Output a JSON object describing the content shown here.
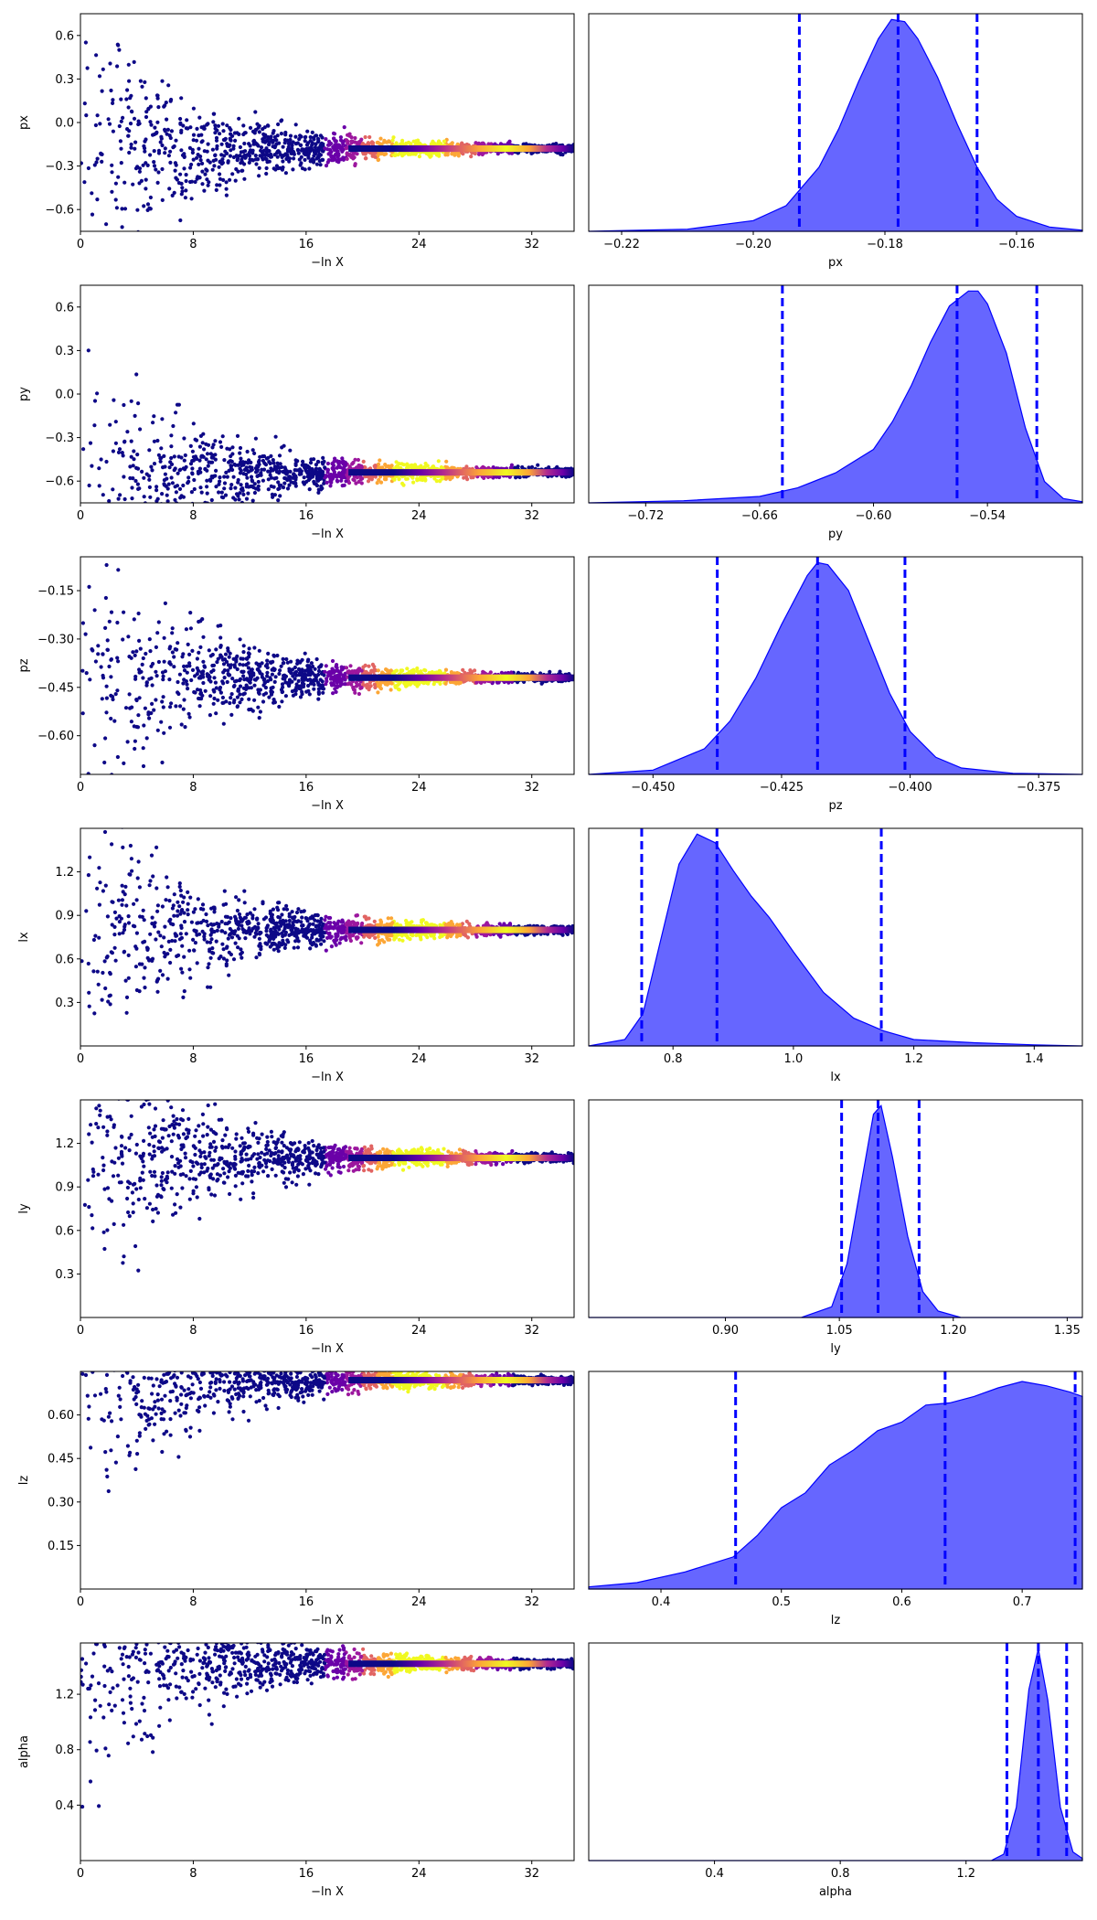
{
  "figure": {
    "xlabel_trace": "−ln X"
  },
  "colors": {
    "kde_fill": "#0000ff",
    "kde_fill_opacity": 0.6,
    "quantile_line": "#0000ff",
    "trace_base": "#0d0887",
    "trace_mid": "#9c179e",
    "trace_peak": "#f0f921"
  },
  "chart_data": [
    {
      "type": "scatter",
      "param": "px",
      "xlabel": "−ln X",
      "ylabel": "px",
      "xlim": [
        0,
        35
      ],
      "ylim": [
        -0.75,
        0.75
      ],
      "xticks": [
        0,
        8,
        16,
        24,
        32
      ],
      "yticks": [
        -0.6,
        -0.3,
        0.0,
        0.3,
        0.6
      ],
      "yticklabels": [
        "−0.6",
        "−0.3",
        "0.0",
        "0.3",
        "0.6"
      ],
      "converged_value": -0.18,
      "peak_x": 24
    },
    {
      "type": "area",
      "param": "px",
      "xlabel": "px",
      "xlim": [
        -0.225,
        -0.15
      ],
      "xticks": [
        -0.22,
        -0.2,
        -0.18,
        -0.16
      ],
      "xticklabels": [
        "−0.22",
        "−0.20",
        "−0.18",
        "−0.16"
      ],
      "quantiles": [
        -0.193,
        -0.178,
        -0.166
      ],
      "density": {
        "x": [
          -0.225,
          -0.21,
          -0.2,
          -0.195,
          -0.19,
          -0.187,
          -0.184,
          -0.181,
          -0.179,
          -0.177,
          -0.175,
          -0.172,
          -0.169,
          -0.166,
          -0.163,
          -0.16,
          -0.155,
          -0.15
        ],
        "y": [
          0,
          0.01,
          0.05,
          0.12,
          0.3,
          0.48,
          0.7,
          0.9,
          0.99,
          0.98,
          0.9,
          0.72,
          0.5,
          0.3,
          0.15,
          0.07,
          0.02,
          0.005
        ]
      }
    },
    {
      "type": "scatter",
      "param": "py",
      "xlabel": "−ln X",
      "ylabel": "py",
      "xlim": [
        0,
        35
      ],
      "ylim": [
        -0.75,
        0.75
      ],
      "xticks": [
        0,
        8,
        16,
        24,
        32
      ],
      "yticks": [
        -0.6,
        -0.3,
        0.0,
        0.3,
        0.6
      ],
      "yticklabels": [
        "−0.6",
        "−0.3",
        "0.0",
        "0.3",
        "0.6"
      ],
      "converged_value": -0.54,
      "peak_x": 24
    },
    {
      "type": "area",
      "param": "py",
      "xlabel": "py",
      "xlim": [
        -0.75,
        -0.49
      ],
      "xticks": [
        -0.72,
        -0.66,
        -0.6,
        -0.54
      ],
      "xticklabels": [
        "−0.72",
        "−0.66",
        "−0.60",
        "−0.54"
      ],
      "quantiles": [
        -0.648,
        -0.556,
        -0.514
      ],
      "density": {
        "x": [
          -0.75,
          -0.7,
          -0.66,
          -0.64,
          -0.62,
          -0.6,
          -0.59,
          -0.58,
          -0.57,
          -0.56,
          -0.55,
          -0.545,
          -0.54,
          -0.53,
          -0.52,
          -0.51,
          -0.5,
          -0.49
        ],
        "y": [
          0,
          0.01,
          0.03,
          0.07,
          0.14,
          0.25,
          0.38,
          0.55,
          0.75,
          0.92,
          0.99,
          0.99,
          0.93,
          0.7,
          0.35,
          0.1,
          0.02,
          0.005
        ]
      }
    },
    {
      "type": "scatter",
      "param": "pz",
      "xlabel": "−ln X",
      "ylabel": "pz",
      "xlim": [
        0,
        35
      ],
      "ylim": [
        -0.72,
        -0.045
      ],
      "xticks": [
        0,
        8,
        16,
        24,
        32
      ],
      "yticks": [
        -0.6,
        -0.45,
        -0.3,
        -0.15
      ],
      "yticklabels": [
        "−0.60",
        "−0.45",
        "−0.30",
        "−0.15"
      ],
      "converged_value": -0.42,
      "peak_x": 24
    },
    {
      "type": "area",
      "param": "pz",
      "xlabel": "pz",
      "xlim": [
        -0.4625,
        -0.3665
      ],
      "xticks": [
        -0.45,
        -0.425,
        -0.4,
        -0.375
      ],
      "xticklabels": [
        "−0.450",
        "−0.425",
        "−0.400",
        "−0.375"
      ],
      "quantiles": [
        -0.4375,
        -0.418,
        -0.401
      ],
      "density": {
        "x": [
          -0.4625,
          -0.45,
          -0.44,
          -0.435,
          -0.43,
          -0.425,
          -0.42,
          -0.418,
          -0.416,
          -0.412,
          -0.408,
          -0.404,
          -0.4,
          -0.395,
          -0.39,
          -0.38,
          -0.3665
        ],
        "y": [
          0,
          0.02,
          0.12,
          0.25,
          0.45,
          0.7,
          0.93,
          0.99,
          0.98,
          0.86,
          0.62,
          0.38,
          0.2,
          0.08,
          0.03,
          0.005,
          0
        ]
      }
    },
    {
      "type": "scatter",
      "param": "lx",
      "xlabel": "−ln X",
      "ylabel": "lx",
      "xlim": [
        0,
        35
      ],
      "ylim": [
        0.0,
        1.5
      ],
      "xticks": [
        0,
        8,
        16,
        24,
        32
      ],
      "yticks": [
        0.3,
        0.6,
        0.9,
        1.2
      ],
      "yticklabels": [
        "0.3",
        "0.6",
        "0.9",
        "1.2"
      ],
      "converged_value": 0.8,
      "peak_x": 24
    },
    {
      "type": "area",
      "param": "lx",
      "xlabel": "lx",
      "xlim": [
        0.66,
        1.48
      ],
      "xticks": [
        0.8,
        1.0,
        1.2,
        1.4
      ],
      "xticklabels": [
        "0.8",
        "1.0",
        "1.2",
        "1.4"
      ],
      "quantiles": [
        0.748,
        0.873,
        1.146
      ],
      "density": {
        "x": [
          0.66,
          0.72,
          0.75,
          0.78,
          0.81,
          0.84,
          0.87,
          0.9,
          0.93,
          0.96,
          1.0,
          1.05,
          1.1,
          1.15,
          1.2,
          1.3,
          1.4,
          1.48
        ],
        "y": [
          0,
          0.03,
          0.15,
          0.5,
          0.85,
          0.99,
          0.95,
          0.82,
          0.7,
          0.6,
          0.44,
          0.25,
          0.13,
          0.07,
          0.03,
          0.015,
          0.005,
          0
        ]
      }
    },
    {
      "type": "scatter",
      "param": "ly",
      "xlabel": "−ln X",
      "ylabel": "ly",
      "xlim": [
        0,
        35
      ],
      "ylim": [
        0.0,
        1.5
      ],
      "xticks": [
        0,
        8,
        16,
        24,
        32
      ],
      "yticks": [
        0.3,
        0.6,
        0.9,
        1.2
      ],
      "yticklabels": [
        "0.3",
        "0.6",
        "0.9",
        "1.2"
      ],
      "converged_value": 1.1,
      "peak_x": 24
    },
    {
      "type": "area",
      "param": "ly",
      "xlabel": "ly",
      "xlim": [
        0.72,
        1.37
      ],
      "xticks": [
        0.9,
        1.05,
        1.2,
        1.35
      ],
      "xticklabels": [
        "0.90",
        "1.05",
        "1.20",
        "1.35"
      ],
      "quantiles": [
        1.053,
        1.101,
        1.155
      ],
      "density": {
        "x": [
          0.72,
          1.0,
          1.04,
          1.06,
          1.08,
          1.095,
          1.105,
          1.12,
          1.14,
          1.16,
          1.18,
          1.21,
          1.37
        ],
        "y": [
          0,
          0,
          0.05,
          0.25,
          0.65,
          0.95,
          0.99,
          0.75,
          0.38,
          0.12,
          0.03,
          0,
          0
        ]
      }
    },
    {
      "type": "scatter",
      "param": "lz",
      "xlabel": "−ln X",
      "ylabel": "lz",
      "xlim": [
        0,
        35
      ],
      "ylim": [
        0.0,
        0.75
      ],
      "xticks": [
        0,
        8,
        16,
        24,
        32
      ],
      "yticks": [
        0.15,
        0.3,
        0.45,
        0.6
      ],
      "yticklabels": [
        "0.15",
        "0.30",
        "0.45",
        "0.60"
      ],
      "converged_value": 0.72,
      "peak_x": 24
    },
    {
      "type": "area",
      "param": "lz",
      "xlabel": "lz",
      "xlim": [
        0.34,
        0.75
      ],
      "xticks": [
        0.4,
        0.5,
        0.6,
        0.7
      ],
      "xticklabels": [
        "0.4",
        "0.5",
        "0.6",
        "0.7"
      ],
      "quantiles": [
        0.462,
        0.636,
        0.744
      ],
      "density": {
        "x": [
          0.34,
          0.38,
          0.42,
          0.46,
          0.48,
          0.5,
          0.52,
          0.54,
          0.56,
          0.58,
          0.6,
          0.62,
          0.64,
          0.66,
          0.68,
          0.7,
          0.72,
          0.74,
          0.75
        ],
        "y": [
          0.01,
          0.03,
          0.08,
          0.15,
          0.25,
          0.38,
          0.45,
          0.58,
          0.65,
          0.74,
          0.78,
          0.86,
          0.87,
          0.9,
          0.94,
          0.97,
          0.95,
          0.92,
          0.9
        ]
      }
    },
    {
      "type": "scatter",
      "param": "alpha",
      "xlabel": "−ln X",
      "ylabel": "alpha",
      "xlim": [
        0,
        35
      ],
      "ylim": [
        0.0,
        1.57
      ],
      "xticks": [
        0,
        8,
        16,
        24,
        32
      ],
      "yticks": [
        0.4,
        0.8,
        1.2
      ],
      "yticklabels": [
        "0.4",
        "0.8",
        "1.2"
      ],
      "converged_value": 1.42,
      "peak_x": 24
    },
    {
      "type": "area",
      "param": "alpha",
      "xlabel": "alpha",
      "xlim": [
        0.0,
        1.57
      ],
      "xticks": [
        0.4,
        0.8,
        1.2
      ],
      "xticklabels": [
        "0.4",
        "0.8",
        "1.2"
      ],
      "quantiles": [
        1.33,
        1.43,
        1.52
      ],
      "density": {
        "x": [
          0.0,
          1.28,
          1.32,
          1.36,
          1.4,
          1.43,
          1.46,
          1.5,
          1.54,
          1.57
        ],
        "y": [
          0,
          0,
          0.03,
          0.25,
          0.8,
          0.99,
          0.75,
          0.25,
          0.04,
          0.01
        ]
      }
    }
  ]
}
